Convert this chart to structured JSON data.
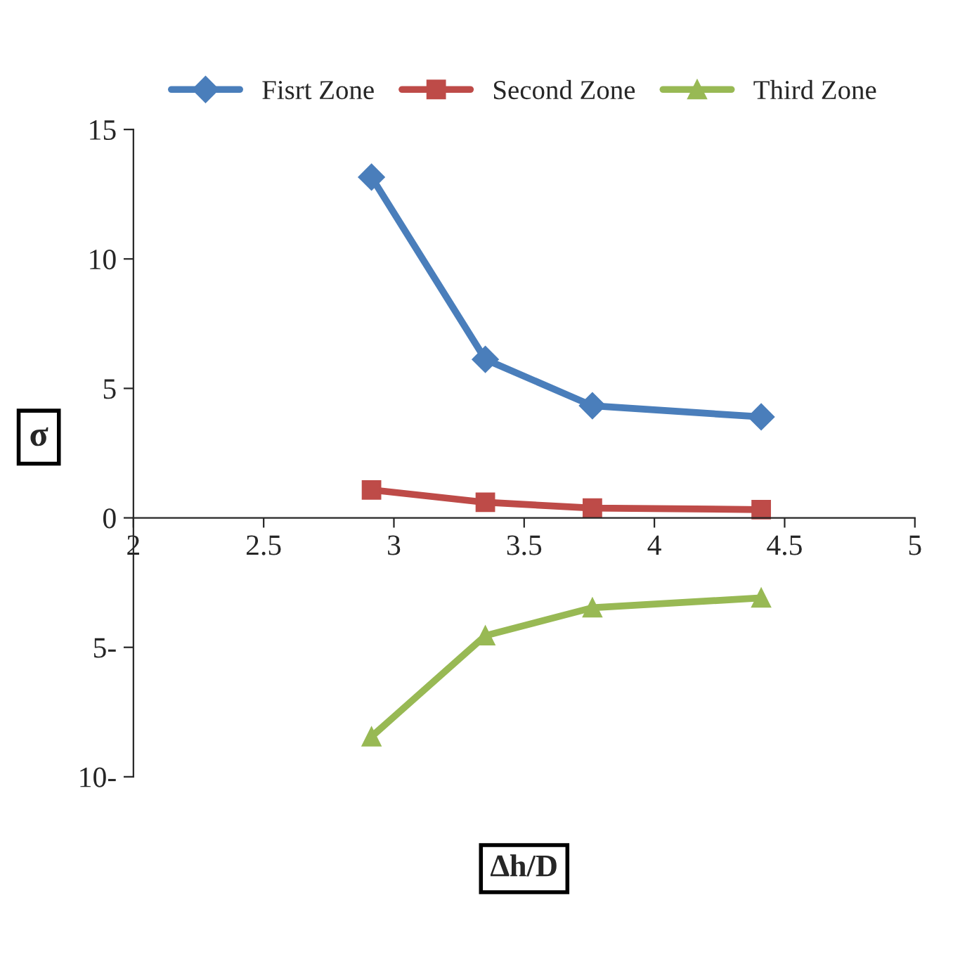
{
  "chart_data": {
    "type": "line",
    "xlabel": "∆h/D",
    "ylabel": "σ",
    "x": [
      2.914,
      3.351,
      3.762,
      4.41
    ],
    "series": [
      {
        "name": "Fisrt Zone",
        "color": "#4a7ebb",
        "marker": "diamond",
        "values": [
          13.16,
          6.12,
          4.33,
          3.9
        ]
      },
      {
        "name": "Second Zone",
        "color": "#be4b48",
        "marker": "square",
        "values": [
          1.08,
          0.6,
          0.38,
          0.32
        ]
      },
      {
        "name": "Third Zone",
        "color": "#98b954",
        "marker": "triangle",
        "values": [
          -8.45,
          -4.55,
          -3.47,
          -3.09
        ]
      }
    ],
    "xlim": [
      2,
      5
    ],
    "xticks": [
      2,
      2.5,
      3,
      3.5,
      4,
      4.5,
      5
    ],
    "ylim": [
      -10,
      15
    ],
    "yticks": [
      {
        "value": -10,
        "label": "10-"
      },
      {
        "value": -5,
        "label": "5-"
      },
      0,
      5,
      10,
      15
    ],
    "grid": false,
    "legend": "top",
    "line_style": "solid"
  }
}
